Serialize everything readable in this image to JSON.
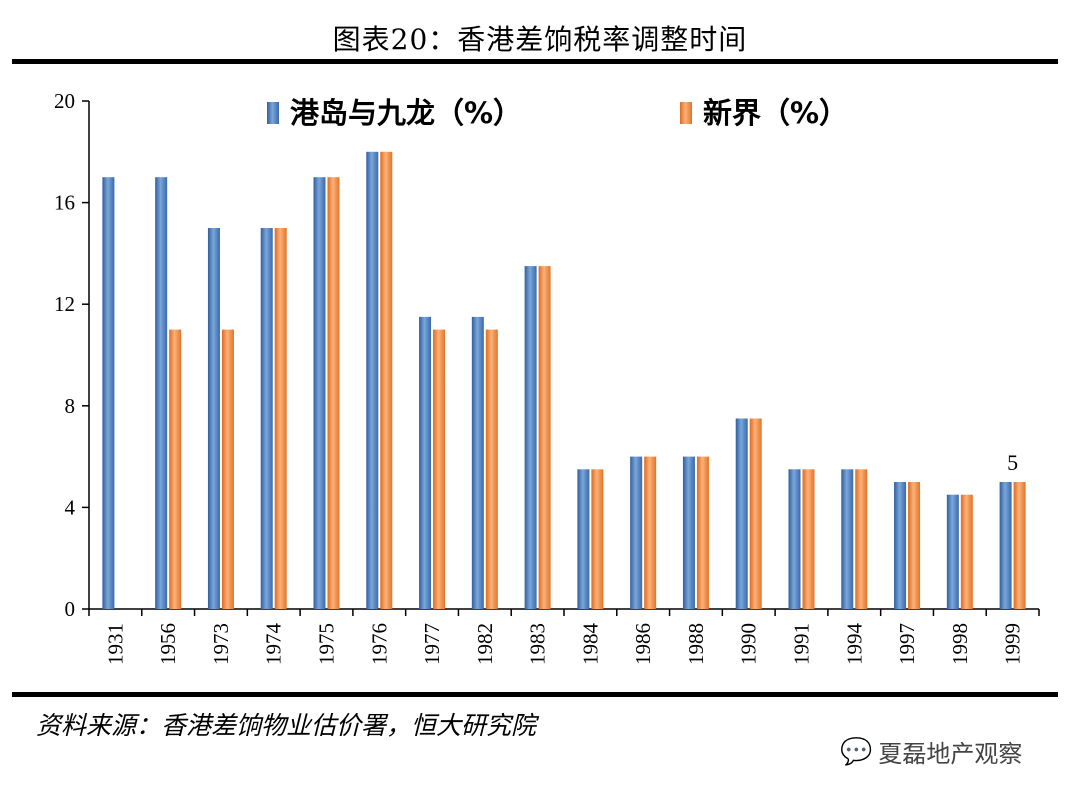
{
  "header": {
    "title": "图表20：香港差饷税率调整时间"
  },
  "footer": {
    "source": "资料来源：香港差饷物业估价署，恒大研究院",
    "watermark": "夏磊地产观察"
  },
  "chart_data": {
    "type": "bar",
    "title": "图表20：香港差饷税率调整时间",
    "categories": [
      "1931",
      "1956",
      "1973",
      "1974",
      "1975",
      "1976",
      "1977",
      "1982",
      "1983",
      "1984",
      "1986",
      "1988",
      "1990",
      "1991",
      "1994",
      "1997",
      "1998",
      "1999"
    ],
    "series": [
      {
        "name": "港岛与九龙（%）",
        "color": "#4a7ebb",
        "values": [
          17,
          17,
          15,
          15,
          17,
          18,
          11.5,
          11.5,
          13.5,
          5.5,
          6,
          6,
          7.5,
          5.5,
          5.5,
          5,
          4.5,
          5
        ]
      },
      {
        "name": "新界（%）",
        "color": "#f0883c",
        "values": [
          null,
          11,
          11,
          15,
          17,
          18,
          11,
          11,
          13.5,
          5.5,
          6,
          6,
          7.5,
          5.5,
          5.5,
          5,
          4.5,
          5
        ]
      }
    ],
    "ylim": [
      0,
      20
    ],
    "yticks": [
      0,
      4,
      8,
      12,
      16,
      20
    ],
    "xlabel": "",
    "ylabel": "",
    "annotations": [
      {
        "category": "1999",
        "text": "5"
      }
    ],
    "legend": "top-center"
  }
}
